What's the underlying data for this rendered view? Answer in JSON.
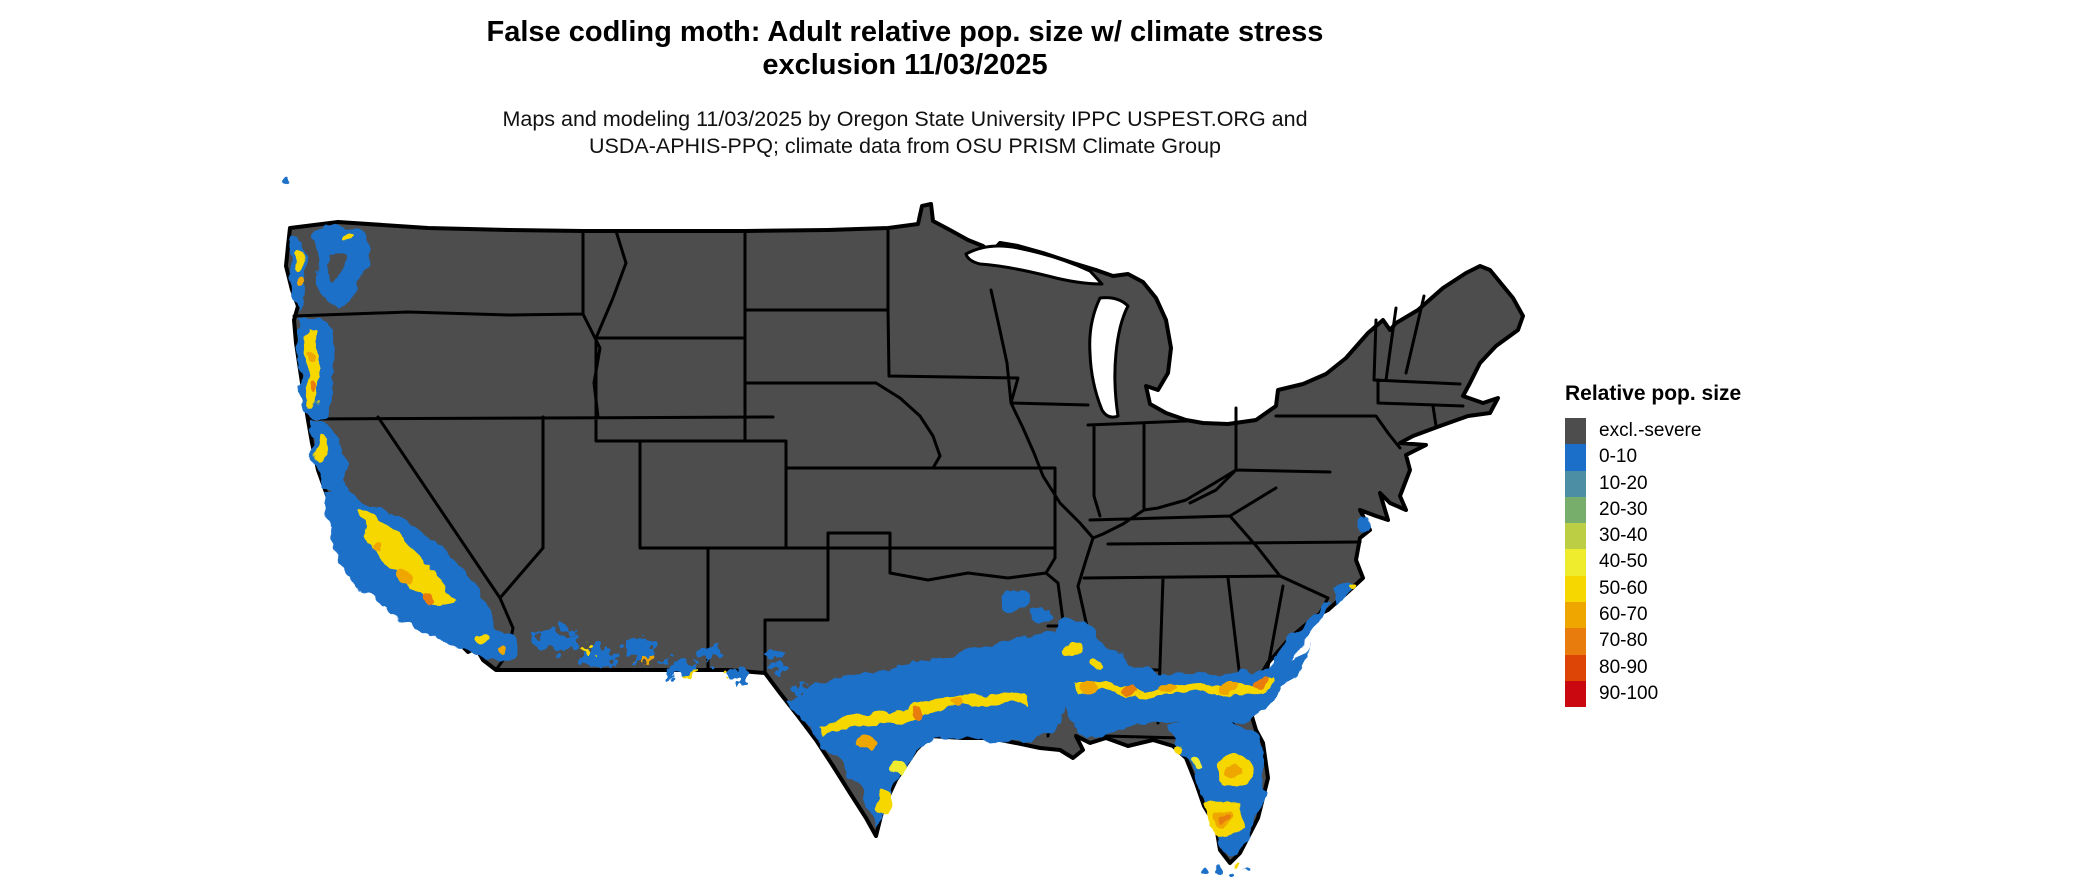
{
  "header": {
    "title_line1": "False codling moth: Adult relative pop. size w/ climate stress",
    "title_line2": "exclusion 11/03/2025",
    "subtitle_line1": "Maps and modeling 11/03/2025 by Oregon State University IPPC USPEST.ORG and",
    "subtitle_line2": "USDA-APHIS-PPQ; climate data from OSU PRISM Climate Group"
  },
  "legend": {
    "title": "Relative pop. size",
    "items": [
      {
        "label": "excl.-severe",
        "color": "#4d4d4d"
      },
      {
        "label": "0-10",
        "color": "#1b6fc8"
      },
      {
        "label": "10-20",
        "color": "#4c8fa5"
      },
      {
        "label": "20-30",
        "color": "#77ae6c"
      },
      {
        "label": "30-40",
        "color": "#bccf44"
      },
      {
        "label": "40-50",
        "color": "#efeb2d"
      },
      {
        "label": "50-60",
        "color": "#f6d800"
      },
      {
        "label": "60-70",
        "color": "#efa700"
      },
      {
        "label": "70-80",
        "color": "#e87d0e"
      },
      {
        "label": "80-90",
        "color": "#dd4506"
      },
      {
        "label": "90-100",
        "color": "#c9090f"
      }
    ]
  },
  "map": {
    "region": "Contiguous United States",
    "land_color": "#4d4d4d",
    "state_border_color": "#000000",
    "water_color": "#ffffff",
    "class_colors": {
      "excl": "#4d4d4d",
      "p0": "#1b6fc8",
      "p10": "#4c8fa5",
      "p20": "#77ae6c",
      "p30": "#bccf44",
      "p40": "#efeb2d",
      "p50": "#f6d800",
      "p60": "#efa700",
      "p70": "#e87d0e",
      "p80": "#dd4506",
      "p90": "#c9090f"
    }
  }
}
